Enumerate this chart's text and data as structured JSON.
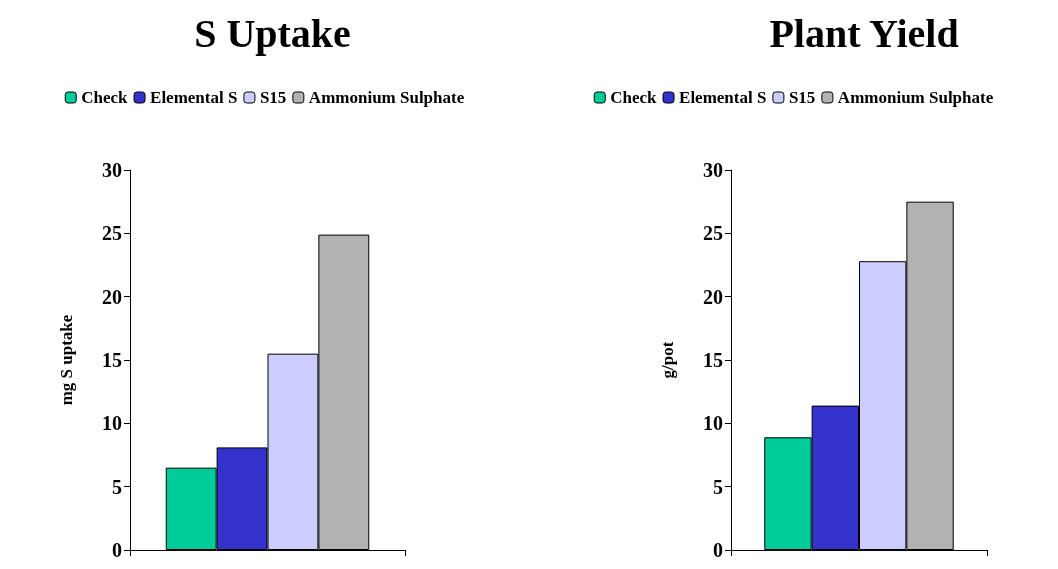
{
  "chart_data": [
    {
      "type": "bar",
      "title": "S Uptake",
      "ylabel": "mg S uptake",
      "categories": [
        null
      ],
      "series": [
        {
          "name": "Check",
          "color": "#00cc99",
          "values": [
            6.5
          ]
        },
        {
          "name": "Elemental S",
          "color": "#3333cc",
          "values": [
            8.1
          ]
        },
        {
          "name": "S15",
          "color": "#ccccff",
          "values": [
            15.5
          ]
        },
        {
          "name": "Ammonium Sulphate",
          "color": "#b2b2b2",
          "values": [
            24.9
          ]
        }
      ],
      "ylim": [
        0,
        30
      ],
      "yticks": [
        0,
        5,
        10,
        15,
        20,
        25,
        30
      ],
      "grid": false,
      "legend": "top"
    },
    {
      "type": "bar",
      "title": "Plant Yield",
      "ylabel": "g/pot",
      "categories": [
        null
      ],
      "series": [
        {
          "name": "Check",
          "color": "#00cc99",
          "values": [
            8.9
          ]
        },
        {
          "name": "Elemental S",
          "color": "#3333cc",
          "values": [
            11.4
          ]
        },
        {
          "name": "S15",
          "color": "#ccccff",
          "values": [
            22.8
          ]
        },
        {
          "name": "Ammonium Sulphate",
          "color": "#b2b2b2",
          "values": [
            27.5
          ]
        }
      ],
      "ylim": [
        0,
        30
      ],
      "yticks": [
        0,
        5,
        10,
        15,
        20,
        25,
        30
      ],
      "grid": false,
      "legend": "top"
    }
  ]
}
